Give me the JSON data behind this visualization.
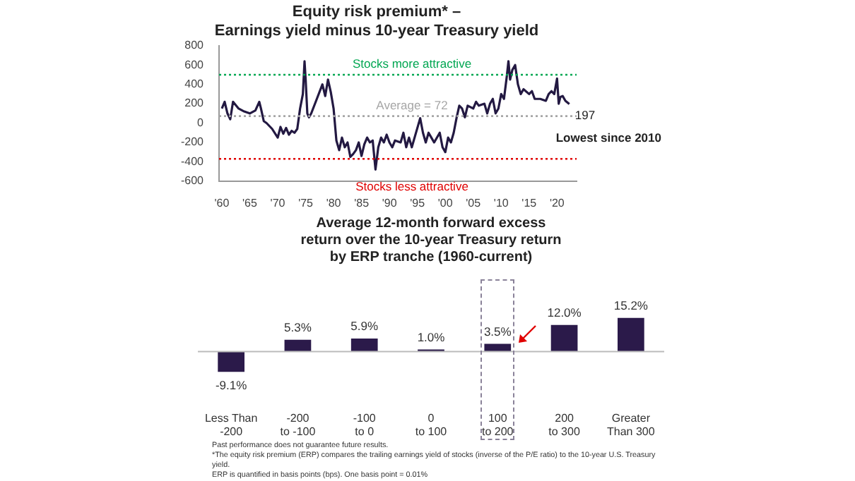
{
  "chart_data": [
    {
      "type": "line",
      "title": "Equity risk premium* –\nEarnings yield minus 10-year Treasury yield",
      "x": [
        1960,
        1960.5,
        1961,
        1961.5,
        1962,
        1963,
        1964,
        1965,
        1966,
        1966.7,
        1967,
        1967.5,
        1968,
        1969,
        1970,
        1970.5,
        1971,
        1971.5,
        1972,
        1972.5,
        1973,
        1973.5,
        1974,
        1974.5,
        1974.8,
        1975,
        1975.3,
        1975.6,
        1976,
        1977,
        1978,
        1978.5,
        1979,
        1979.5,
        1980,
        1980.5,
        1981,
        1981.5,
        1982,
        1982.5,
        1983,
        1983.5,
        1984,
        1984.5,
        1985,
        1985.5,
        1986,
        1986.5,
        1987,
        1987.5,
        1988,
        1988.5,
        1989,
        1989.5,
        1990,
        1990.5,
        1991,
        1992,
        1992.5,
        1993,
        1993.5,
        1994,
        1995,
        1995.5,
        1996,
        1996.5,
        1997,
        1997.5,
        1998,
        1999,
        1999.5,
        2000,
        2000.5,
        2001,
        2001.5,
        2002,
        2002.5,
        2003,
        2003.5,
        2004,
        2005,
        2005.5,
        2006,
        2007,
        2007.5,
        2008,
        2008.5,
        2009,
        2009.5,
        2010,
        2010.5,
        2011,
        2011.3,
        2011.6,
        2012,
        2012.5,
        2013,
        2013.5,
        2014,
        2015,
        2015.5,
        2016,
        2017,
        2018,
        2018.5,
        2019,
        2019.5,
        2020,
        2020.3,
        2020.6,
        2021,
        2021.5,
        2022.2
      ],
      "series": [
        {
          "color": "#231942",
          "values": [
            150,
            220,
            100,
            40,
            220,
            150,
            120,
            100,
            130,
            220,
            150,
            20,
            0,
            -60,
            -150,
            -40,
            -110,
            -50,
            -120,
            -80,
            -100,
            -60,
            150,
            300,
            640,
            450,
            100,
            60,
            100,
            250,
            400,
            280,
            450,
            320,
            150,
            -180,
            -280,
            -150,
            -250,
            -200,
            -350,
            -320,
            -280,
            -200,
            -340,
            -220,
            -150,
            -200,
            -180,
            -480,
            -250,
            -150,
            -200,
            -120,
            -200,
            -250,
            -180,
            -200,
            -100,
            -250,
            -150,
            -250,
            -50,
            50,
            -100,
            -200,
            -100,
            -150,
            -200,
            -100,
            -250,
            -300,
            -150,
            -200,
            -100,
            50,
            180,
            150,
            60,
            180,
            150,
            220,
            180,
            200,
            100,
            200,
            250,
            100,
            150,
            300,
            250,
            480,
            640,
            450,
            550,
            600,
            400,
            300,
            350,
            300,
            330,
            250,
            250,
            230,
            300,
            330,
            300,
            460,
            200,
            270,
            280,
            230,
            197
          ]
        }
      ],
      "xlim": [
        1959.5,
        2023.5
      ],
      "xticks": [
        {
          "value": 1960,
          "label": "'60"
        },
        {
          "value": 1965,
          "label": "'65"
        },
        {
          "value": 1970,
          "label": "'70"
        },
        {
          "value": 1975,
          "label": "'75"
        },
        {
          "value": 1980,
          "label": "'80"
        },
        {
          "value": 1985,
          "label": "'85"
        },
        {
          "value": 1990,
          "label": "'90"
        },
        {
          "value": 1995,
          "label": "'95"
        },
        {
          "value": 2000,
          "label": "'00"
        },
        {
          "value": 2005,
          "label": "'05"
        },
        {
          "value": 2010,
          "label": "'10"
        },
        {
          "value": 2015,
          "label": "'15"
        },
        {
          "value": 2020,
          "label": "'20"
        }
      ],
      "ylim": [
        -600,
        800
      ],
      "yticks": [
        -600,
        -400,
        -200,
        0,
        200,
        400,
        600,
        800
      ],
      "ref_lines": [
        {
          "axis": "y",
          "value": 500,
          "label": "Stocks more attractive",
          "color": "#00a651",
          "line_style": "dotted"
        },
        {
          "axis": "y",
          "value": 72,
          "label": "Average = 72",
          "color": "#a6a6a6",
          "line_style": "dotted"
        },
        {
          "axis": "y",
          "value": -370,
          "label": "Stocks less attractive",
          "color": "#e00000",
          "line_style": "dotted"
        }
      ],
      "annotations": [
        {
          "text": "197",
          "x": 2022.2,
          "y": 197
        },
        "Lowest since 2010"
      ],
      "grid": false,
      "legend": false,
      "marker": "none",
      "line_style": "solid"
    },
    {
      "type": "bar",
      "title": "Average 12-month forward excess\nreturn over the 10-year Treasury return\nby ERP tranche (1960-current)",
      "categories": [
        "Less Than\n-200",
        "-200\nto -100",
        "-100\nto 0",
        "0\nto 100",
        "100\nto 200",
        "200\nto 300",
        "Greater\nThan 300"
      ],
      "series": [
        {
          "color": "#2b1a4a",
          "values": [
            -9.1,
            5.3,
            5.9,
            1.0,
            3.5,
            12.0,
            15.2
          ],
          "value_labels": [
            "-9.1%",
            "5.3%",
            "5.9%",
            "1.0%",
            "3.5%",
            "12.0%",
            "15.2%"
          ]
        }
      ],
      "tick_labels": "x",
      "grid": false,
      "legend": false,
      "annotations": [
        "Past performance does not guarantee future results.",
        "*The equity risk premium (ERP) compares the trailing earnings yield of stocks (inverse of the P/E ratio) to the 10-year U.S. Treasury yield.",
        "ERP is quantified in basis points (bps). One basis point = 0.01%"
      ]
    }
  ]
}
